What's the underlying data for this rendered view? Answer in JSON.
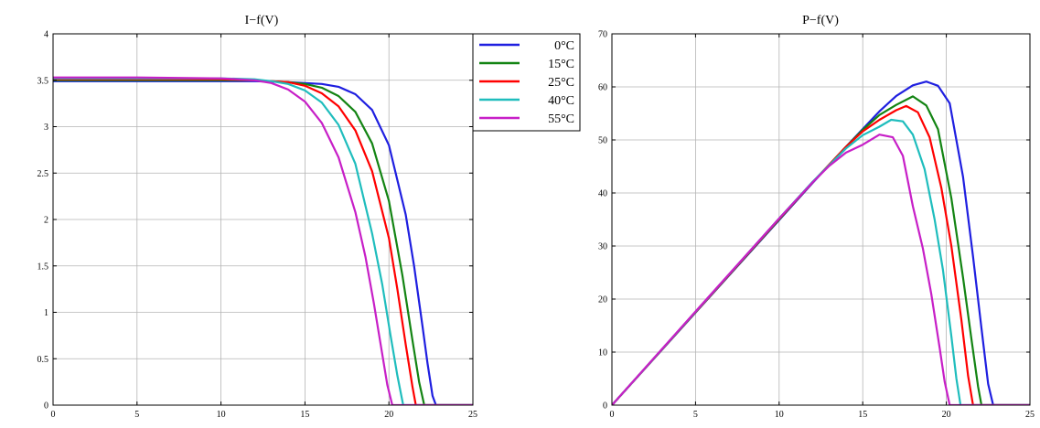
{
  "chart_data": [
    {
      "type": "line",
      "title": "I−f(V)",
      "xlabel": "",
      "ylabel": "",
      "xlim": [
        0,
        25
      ],
      "ylim": [
        0,
        4
      ],
      "xticks": [
        0,
        5,
        10,
        15,
        20,
        25
      ],
      "yticks": [
        0,
        0.5,
        1,
        1.5,
        2,
        2.5,
        3,
        3.5,
        4
      ],
      "xtick_labels": [
        "0",
        "5",
        "10",
        "15",
        "20",
        "25"
      ],
      "ytick_labels": [
        "0",
        "0.5",
        "1",
        "1.5",
        "2",
        "2.5",
        "3",
        "3.5",
        "4"
      ],
      "grid": true,
      "legend_position": "top-right",
      "series": [
        {
          "name": "0°C",
          "color": "#1f1fe0",
          "x": [
            0,
            5,
            10,
            12,
            14,
            16,
            17,
            18,
            19,
            20,
            21,
            21.5,
            22,
            22.3,
            22.6,
            22.8,
            25
          ],
          "y": [
            3.49,
            3.49,
            3.49,
            3.49,
            3.48,
            3.46,
            3.43,
            3.35,
            3.18,
            2.8,
            2.05,
            1.5,
            0.85,
            0.45,
            0.1,
            0,
            0
          ]
        },
        {
          "name": "15°C",
          "color": "#138413",
          "x": [
            0,
            5,
            10,
            12,
            14,
            15,
            16,
            17,
            18,
            19,
            20,
            20.8,
            21.4,
            21.8,
            22.1,
            25
          ],
          "y": [
            3.5,
            3.5,
            3.5,
            3.5,
            3.48,
            3.46,
            3.42,
            3.33,
            3.16,
            2.82,
            2.2,
            1.4,
            0.7,
            0.25,
            0,
            0
          ]
        },
        {
          "name": "25°C",
          "color": "#ff0000",
          "x": [
            0,
            5,
            10,
            12,
            14,
            15,
            16,
            17,
            18,
            19,
            20,
            20.5,
            21,
            21.4,
            21.6,
            25
          ],
          "y": [
            3.51,
            3.51,
            3.51,
            3.5,
            3.48,
            3.44,
            3.36,
            3.22,
            2.96,
            2.52,
            1.8,
            1.25,
            0.65,
            0.2,
            0,
            0
          ]
        },
        {
          "name": "40°C",
          "color": "#1fbdbd",
          "x": [
            0,
            5,
            10,
            12,
            13,
            14,
            15,
            16,
            17,
            18,
            19,
            19.6,
            20.1,
            20.5,
            20.85,
            25
          ],
          "y": [
            3.52,
            3.52,
            3.52,
            3.51,
            3.49,
            3.46,
            3.39,
            3.26,
            3.02,
            2.6,
            1.85,
            1.3,
            0.75,
            0.32,
            0,
            0
          ]
        },
        {
          "name": "55°C",
          "color": "#c71fc7",
          "x": [
            0,
            5,
            10,
            12,
            13,
            14,
            15,
            16,
            17,
            18,
            18.6,
            19.1,
            19.6,
            19.9,
            20.2,
            25
          ],
          "y": [
            3.53,
            3.53,
            3.52,
            3.5,
            3.47,
            3.4,
            3.27,
            3.04,
            2.67,
            2.08,
            1.6,
            1.1,
            0.55,
            0.22,
            0,
            0
          ]
        }
      ]
    },
    {
      "type": "line",
      "title": "P−f(V)",
      "xlabel": "",
      "ylabel": "",
      "xlim": [
        0,
        25
      ],
      "ylim": [
        0,
        70
      ],
      "xticks": [
        0,
        5,
        10,
        15,
        20,
        25
      ],
      "yticks": [
        0,
        10,
        20,
        30,
        40,
        50,
        60,
        70
      ],
      "xtick_labels": [
        "0",
        "5",
        "10",
        "15",
        "20",
        "25"
      ],
      "ytick_labels": [
        "0",
        "10",
        "20",
        "30",
        "40",
        "50",
        "60",
        "70"
      ],
      "grid": true,
      "legend_position": "none",
      "series": [
        {
          "name": "0°C",
          "color": "#1f1fe0",
          "x": [
            0,
            5,
            10,
            12,
            14,
            16,
            17,
            18,
            18.8,
            19.5,
            20.2,
            21,
            21.6,
            22.1,
            22.5,
            22.8,
            25
          ],
          "y": [
            0,
            17.45,
            34.9,
            41.9,
            48.7,
            55.4,
            58.3,
            60.3,
            61,
            60.2,
            56.9,
            43,
            28,
            14.5,
            4,
            0,
            0
          ]
        },
        {
          "name": "15°C",
          "color": "#138413",
          "x": [
            0,
            5,
            10,
            12,
            14,
            15,
            16,
            17,
            18,
            18.8,
            19.5,
            20.3,
            21,
            21.5,
            21.9,
            22.1,
            25
          ],
          "y": [
            0,
            17.5,
            35,
            42,
            48.7,
            51.9,
            54.7,
            56.6,
            58.2,
            56.5,
            52,
            39,
            24,
            12.5,
            3.5,
            0,
            0
          ]
        },
        {
          "name": "25°C",
          "color": "#ff0000",
          "x": [
            0,
            5,
            10,
            12,
            14,
            15,
            16,
            17,
            17.6,
            18.3,
            19,
            19.7,
            20.3,
            20.9,
            21.3,
            21.6,
            25
          ],
          "y": [
            0,
            17.55,
            35.1,
            42,
            48.7,
            51.6,
            53.8,
            55.6,
            56.4,
            55.2,
            50.5,
            41,
            30,
            16,
            5.5,
            0,
            0
          ]
        },
        {
          "name": "40°C",
          "color": "#1fbdbd",
          "x": [
            0,
            5,
            10,
            12,
            14,
            15,
            16,
            16.7,
            17.4,
            18,
            18.7,
            19.3,
            19.8,
            20.3,
            20.6,
            20.85,
            25
          ],
          "y": [
            0,
            17.6,
            35.2,
            42.1,
            48.4,
            50.9,
            52.5,
            53.8,
            53.5,
            51,
            44.5,
            35,
            25.5,
            13,
            5,
            0,
            0
          ]
        },
        {
          "name": "55°C",
          "color": "#c71fc7",
          "x": [
            0,
            5,
            10,
            12,
            13,
            14,
            15,
            16,
            16.8,
            17.4,
            18,
            18.6,
            19.1,
            19.6,
            19.9,
            20.2,
            25
          ],
          "y": [
            0,
            17.65,
            35.2,
            42,
            45.1,
            47.6,
            49.1,
            51,
            50.5,
            47,
            37.5,
            29.5,
            21,
            10.8,
            4.4,
            0,
            0
          ]
        }
      ]
    }
  ]
}
